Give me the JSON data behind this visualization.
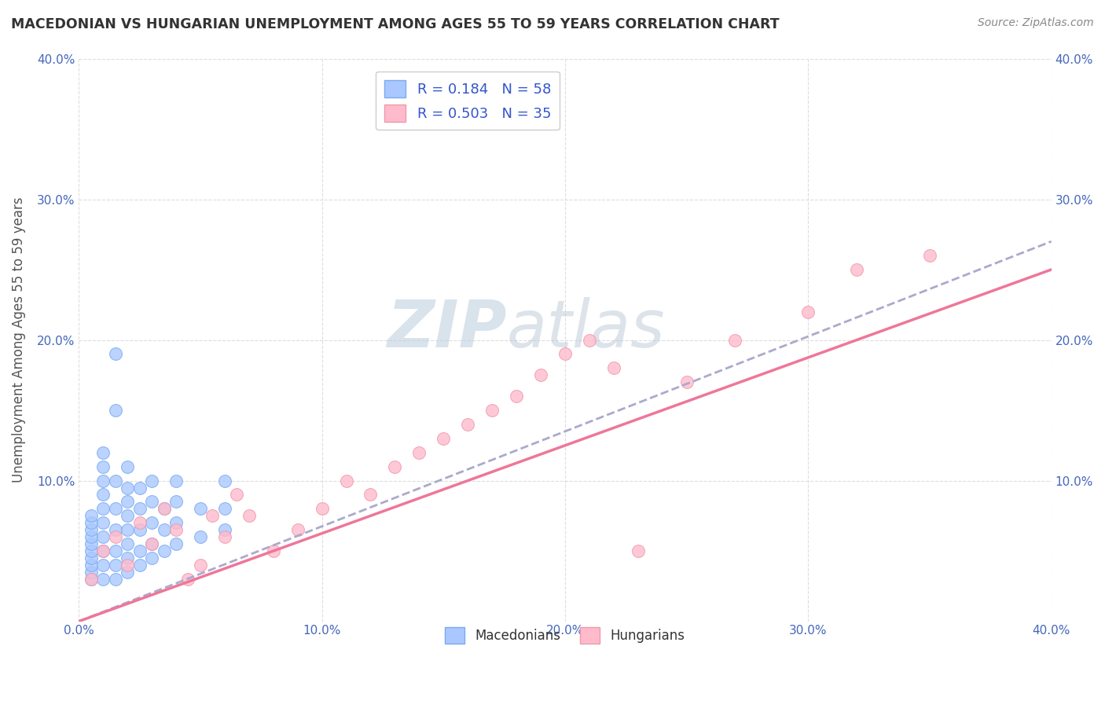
{
  "title": "MACEDONIAN VS HUNGARIAN UNEMPLOYMENT AMONG AGES 55 TO 59 YEARS CORRELATION CHART",
  "source": "Source: ZipAtlas.com",
  "ylabel": "Unemployment Among Ages 55 to 59 years",
  "xlim": [
    0.0,
    0.4
  ],
  "ylim": [
    0.0,
    0.4
  ],
  "x_ticks": [
    0.0,
    0.1,
    0.2,
    0.3,
    0.4
  ],
  "y_ticks": [
    0.0,
    0.1,
    0.2,
    0.3,
    0.4
  ],
  "x_tick_labels": [
    "0.0%",
    "10.0%",
    "20.0%",
    "30.0%",
    "40.0%"
  ],
  "y_tick_labels": [
    "",
    "10.0%",
    "20.0%",
    "30.0%",
    "40.0%"
  ],
  "macedonian_color": "#aac8ff",
  "macedonian_edge": "#7aaaee",
  "hungarian_color": "#ffbbcc",
  "hungarian_edge": "#ee99aa",
  "mac_line_color": "#aaaacc",
  "hun_line_color": "#ee7799",
  "macedonian_R": 0.184,
  "macedonian_N": 58,
  "hungarian_R": 0.503,
  "hungarian_N": 35,
  "legend_label_mac": "Macedonians",
  "legend_label_hun": "Hungarians",
  "watermark_zip": "ZIP",
  "watermark_atlas": "atlas",
  "background_color": "#ffffff",
  "grid_color": "#dddddd",
  "title_color": "#333333",
  "source_color": "#888888",
  "tick_color": "#4466bb",
  "ylabel_color": "#555555",
  "legend_text_color": "#333333",
  "legend_value_color": "#3355cc",
  "macedonian_x": [
    0.005,
    0.005,
    0.005,
    0.005,
    0.005,
    0.005,
    0.005,
    0.005,
    0.005,
    0.005,
    0.01,
    0.01,
    0.01,
    0.01,
    0.01,
    0.01,
    0.01,
    0.01,
    0.01,
    0.01,
    0.015,
    0.015,
    0.015,
    0.015,
    0.015,
    0.015,
    0.015,
    0.015,
    0.02,
    0.02,
    0.02,
    0.02,
    0.02,
    0.02,
    0.02,
    0.02,
    0.025,
    0.025,
    0.025,
    0.025,
    0.025,
    0.03,
    0.03,
    0.03,
    0.03,
    0.03,
    0.035,
    0.035,
    0.035,
    0.04,
    0.04,
    0.04,
    0.04,
    0.05,
    0.05,
    0.06,
    0.06,
    0.06
  ],
  "macedonian_y": [
    0.03,
    0.035,
    0.04,
    0.045,
    0.05,
    0.055,
    0.06,
    0.065,
    0.07,
    0.075,
    0.03,
    0.04,
    0.05,
    0.06,
    0.07,
    0.08,
    0.09,
    0.1,
    0.11,
    0.12,
    0.03,
    0.04,
    0.05,
    0.065,
    0.08,
    0.1,
    0.15,
    0.19,
    0.035,
    0.045,
    0.055,
    0.065,
    0.075,
    0.085,
    0.095,
    0.11,
    0.04,
    0.05,
    0.065,
    0.08,
    0.095,
    0.045,
    0.055,
    0.07,
    0.085,
    0.1,
    0.05,
    0.065,
    0.08,
    0.055,
    0.07,
    0.085,
    0.1,
    0.06,
    0.08,
    0.065,
    0.08,
    0.1
  ],
  "hungarian_x": [
    0.005,
    0.01,
    0.015,
    0.02,
    0.025,
    0.03,
    0.035,
    0.04,
    0.045,
    0.05,
    0.055,
    0.06,
    0.065,
    0.07,
    0.08,
    0.09,
    0.1,
    0.11,
    0.12,
    0.13,
    0.14,
    0.15,
    0.16,
    0.17,
    0.18,
    0.19,
    0.2,
    0.21,
    0.22,
    0.23,
    0.25,
    0.27,
    0.3,
    0.32,
    0.35
  ],
  "hungarian_y": [
    0.03,
    0.05,
    0.06,
    0.04,
    0.07,
    0.055,
    0.08,
    0.065,
    0.03,
    0.04,
    0.075,
    0.06,
    0.09,
    0.075,
    0.05,
    0.065,
    0.08,
    0.1,
    0.09,
    0.11,
    0.12,
    0.13,
    0.14,
    0.15,
    0.16,
    0.175,
    0.19,
    0.2,
    0.18,
    0.05,
    0.17,
    0.2,
    0.22,
    0.25,
    0.26
  ]
}
